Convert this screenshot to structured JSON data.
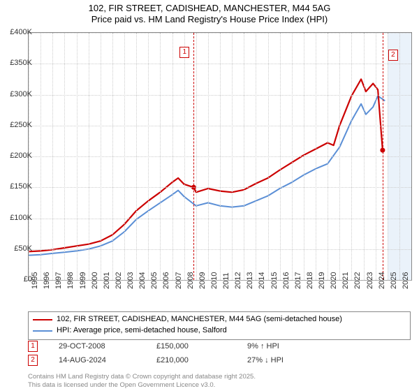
{
  "title": {
    "line1": "102, FIR STREET, CADISHEAD, MANCHESTER, M44 5AG",
    "line2": "Price paid vs. HM Land Registry's House Price Index (HPI)",
    "fontsize": 13,
    "color": "#000000"
  },
  "chart": {
    "type": "line",
    "background_color": "#ffffff",
    "grid_color": "#cccccc",
    "border_color": "#888888",
    "future_shade_color": "#d6e6f5",
    "x": {
      "min": 1995,
      "max": 2027,
      "ticks": [
        1995,
        1996,
        1997,
        1998,
        1999,
        2000,
        2001,
        2002,
        2003,
        2004,
        2005,
        2006,
        2007,
        2008,
        2009,
        2010,
        2011,
        2012,
        2013,
        2014,
        2015,
        2016,
        2017,
        2018,
        2019,
        2020,
        2021,
        2022,
        2023,
        2024,
        2025,
        2026
      ],
      "label_fontsize": 11,
      "label_rotation": -90
    },
    "y": {
      "min": 0,
      "max": 400000,
      "ticks": [
        0,
        50000,
        100000,
        150000,
        200000,
        250000,
        300000,
        350000,
        400000
      ],
      "tick_labels": [
        "£0",
        "£50K",
        "£100K",
        "£150K",
        "£200K",
        "£250K",
        "£300K",
        "£350K",
        "£400K"
      ],
      "label_fontsize": 11
    },
    "future_region_start": 2025,
    "series": [
      {
        "name": "price_paid",
        "label": "102, FIR STREET, CADISHEAD, MANCHESTER, M44 5AG (semi-detached house)",
        "color": "#cc0000",
        "line_width": 2.2,
        "points": [
          [
            1995,
            46000
          ],
          [
            1996,
            47000
          ],
          [
            1997,
            49000
          ],
          [
            1998,
            52000
          ],
          [
            1999,
            55000
          ],
          [
            2000,
            58000
          ],
          [
            2001,
            63000
          ],
          [
            2002,
            73000
          ],
          [
            2003,
            90000
          ],
          [
            2004,
            112000
          ],
          [
            2005,
            128000
          ],
          [
            2006,
            142000
          ],
          [
            2007,
            158000
          ],
          [
            2007.5,
            165000
          ],
          [
            2008,
            155000
          ],
          [
            2008.8,
            150000
          ],
          [
            2009,
            142000
          ],
          [
            2010,
            148000
          ],
          [
            2011,
            144000
          ],
          [
            2012,
            142000
          ],
          [
            2013,
            146000
          ],
          [
            2014,
            156000
          ],
          [
            2015,
            165000
          ],
          [
            2016,
            178000
          ],
          [
            2017,
            190000
          ],
          [
            2018,
            202000
          ],
          [
            2019,
            212000
          ],
          [
            2020,
            222000
          ],
          [
            2020.5,
            218000
          ],
          [
            2021,
            250000
          ],
          [
            2022,
            298000
          ],
          [
            2022.8,
            325000
          ],
          [
            2023.2,
            305000
          ],
          [
            2023.8,
            318000
          ],
          [
            2024.2,
            308000
          ],
          [
            2024.6,
            210000
          ]
        ]
      },
      {
        "name": "hpi",
        "label": "HPI: Average price, semi-detached house, Salford",
        "color": "#5b8fd6",
        "line_width": 2,
        "points": [
          [
            1995,
            40000
          ],
          [
            1996,
            41000
          ],
          [
            1997,
            43000
          ],
          [
            1998,
            45000
          ],
          [
            1999,
            47000
          ],
          [
            2000,
            50000
          ],
          [
            2001,
            55000
          ],
          [
            2002,
            63000
          ],
          [
            2003,
            78000
          ],
          [
            2004,
            98000
          ],
          [
            2005,
            112000
          ],
          [
            2006,
            125000
          ],
          [
            2007,
            138000
          ],
          [
            2007.5,
            145000
          ],
          [
            2008,
            135000
          ],
          [
            2009,
            120000
          ],
          [
            2010,
            125000
          ],
          [
            2011,
            120000
          ],
          [
            2012,
            118000
          ],
          [
            2013,
            120000
          ],
          [
            2014,
            128000
          ],
          [
            2015,
            136000
          ],
          [
            2016,
            148000
          ],
          [
            2017,
            158000
          ],
          [
            2018,
            170000
          ],
          [
            2019,
            180000
          ],
          [
            2020,
            188000
          ],
          [
            2021,
            215000
          ],
          [
            2022,
            258000
          ],
          [
            2022.8,
            285000
          ],
          [
            2023.2,
            268000
          ],
          [
            2023.8,
            280000
          ],
          [
            2024.2,
            298000
          ],
          [
            2024.8,
            290000
          ]
        ]
      }
    ],
    "event_markers": [
      {
        "n": "1",
        "x": 2008.8,
        "y": 150000,
        "color": "#cc0000"
      },
      {
        "n": "2",
        "x": 2024.6,
        "y": 210000,
        "color": "#cc0000"
      }
    ],
    "event_dot_color": "#cc0000"
  },
  "legend": {
    "border_color": "#888888",
    "fontsize": 11
  },
  "events": [
    {
      "n": "1",
      "date": "29-OCT-2008",
      "price": "£150,000",
      "delta": "9% ↑ HPI",
      "box_color": "#cc0000"
    },
    {
      "n": "2",
      "date": "14-AUG-2024",
      "price": "£210,000",
      "delta": "27% ↓ HPI",
      "box_color": "#cc0000"
    }
  ],
  "footer": {
    "line1": "Contains HM Land Registry data © Crown copyright and database right 2025.",
    "line2": "This data is licensed under the Open Government Licence v3.0.",
    "color": "#888888",
    "fontsize": 9.5
  }
}
